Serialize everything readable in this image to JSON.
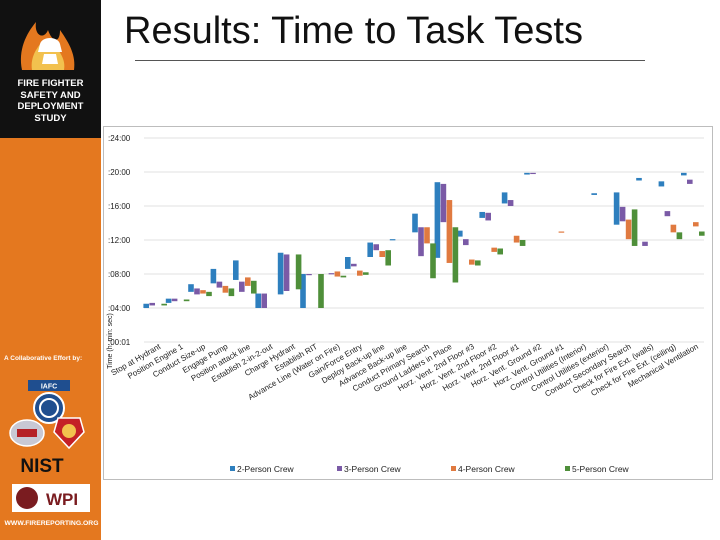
{
  "slide": {
    "title": "Results: Time to Task Tests",
    "org_name": [
      "FIRE FIGHTER",
      "SAFETY AND",
      "DEPLOYMENT",
      "STUDY"
    ],
    "collaborative": "A Collaborative Effort by:",
    "partner_labels": [
      "IAFC",
      "NIST",
      "WPI"
    ],
    "website": "WWW.FIREREPORTING.ORG"
  },
  "colors": {
    "sidebar": "#e4781f",
    "logo_bg": "#111111",
    "series": [
      "#2e7fbe",
      "#7a5aa6",
      "#e07a40",
      "#4f8f3a"
    ]
  },
  "chart_data": {
    "type": "bar",
    "subtype": "floating-range",
    "ylabel": "Time (h: min: sec)",
    "y_ticks": [
      ":00:01",
      ":04:00",
      ":08:00",
      ":12:00",
      ":16:00",
      ":20:00",
      ":24:00"
    ],
    "ylim": [
      0,
      24
    ],
    "y_unit": "minutes",
    "legend_position": "bottom",
    "categories": [
      "Stop at Hydrant",
      "Position Engine 1",
      "Conduct Size-up",
      "Engage Pump",
      "Position attack line",
      "Establish 2-in-2-out",
      "Charge Hydrant",
      "Establish RIT",
      "Advance Line (Water on Fire)",
      "Gain/Force Entry",
      "Deploy Back-up line",
      "Advance Back-up line",
      "Conduct Primary Search",
      "Ground Ladders in Place",
      "Horz. Vent. 2nd Floor #3",
      "Horz. Vent. 2nd Floor #2",
      "Horz. Vent. 2nd Floor #1",
      "Horz. Vent. Ground #2",
      "Horz. Vent. Ground #1",
      "Control Utilities (Interior)",
      "Control Utilities (exterior)",
      "Conduct Secondary Search",
      "Check for Fire Ext. (walls)",
      "Check for Fire Ext. (ceiling)",
      "Mechanical Ventilation"
    ],
    "series": [
      {
        "name": "2-Person Crew",
        "ranges": [
          [
            4.0,
            4.5
          ],
          [
            4.6,
            5.1
          ],
          [
            5.9,
            6.8
          ],
          [
            6.9,
            8.6
          ],
          [
            7.3,
            9.6
          ],
          [
            4.0,
            5.7
          ],
          [
            5.6,
            10.5
          ],
          [
            4.0,
            8.0
          ],
          [
            null,
            null
          ],
          [
            8.6,
            10.0
          ],
          [
            10.0,
            11.7
          ],
          [
            12.0,
            12.1
          ],
          [
            12.9,
            15.1
          ],
          [
            9.9,
            18.8
          ],
          [
            12.4,
            13.1
          ],
          [
            14.6,
            15.3
          ],
          [
            16.3,
            17.6
          ],
          [
            19.7,
            19.9
          ],
          [
            null,
            null
          ],
          [
            null,
            null
          ],
          [
            17.3,
            17.5
          ],
          [
            13.8,
            17.6
          ],
          [
            19.0,
            19.3
          ],
          [
            18.3,
            18.9
          ],
          [
            19.6,
            19.9
          ]
        ]
      },
      {
        "name": "3-Person Crew",
        "ranges": [
          [
            4.3,
            4.6
          ],
          [
            4.8,
            5.1
          ],
          [
            5.6,
            6.3
          ],
          [
            6.4,
            7.1
          ],
          [
            5.9,
            7.1
          ],
          [
            4.0,
            5.7
          ],
          [
            6.0,
            10.3
          ],
          [
            7.9,
            8.0
          ],
          [
            8.0,
            8.1
          ],
          [
            8.9,
            9.2
          ],
          [
            10.8,
            11.5
          ],
          [
            null,
            null
          ],
          [
            10.1,
            13.5
          ],
          [
            14.1,
            18.6
          ],
          [
            11.4,
            12.1
          ],
          [
            14.3,
            15.2
          ],
          [
            16.0,
            16.7
          ],
          [
            19.8,
            19.9
          ],
          [
            null,
            null
          ],
          [
            null,
            null
          ],
          [
            null,
            null
          ],
          [
            14.2,
            15.9
          ],
          [
            11.3,
            11.8
          ],
          [
            14.8,
            15.4
          ],
          [
            18.6,
            19.1
          ]
        ]
      },
      {
        "name": "4-Person Crew",
        "ranges": [
          [
            null,
            null
          ],
          [
            null,
            null
          ],
          [
            5.7,
            6.1
          ],
          [
            5.8,
            6.6
          ],
          [
            6.6,
            7.6
          ],
          [
            null,
            null
          ],
          [
            null,
            null
          ],
          [
            null,
            null
          ],
          [
            7.7,
            8.3
          ],
          [
            7.8,
            8.4
          ],
          [
            10.0,
            10.7
          ],
          [
            null,
            null
          ],
          [
            11.6,
            13.5
          ],
          [
            9.3,
            16.7
          ],
          [
            9.1,
            9.7
          ],
          [
            10.6,
            11.1
          ],
          [
            11.7,
            12.5
          ],
          [
            null,
            null
          ],
          [
            12.9,
            13.0
          ],
          [
            null,
            null
          ],
          [
            null,
            null
          ],
          [
            12.1,
            14.4
          ],
          [
            null,
            null
          ],
          [
            12.9,
            13.8
          ],
          [
            13.6,
            14.1
          ]
        ]
      },
      {
        "name": "5-Person Crew",
        "ranges": [
          [
            4.3,
            4.5
          ],
          [
            4.8,
            5.0
          ],
          [
            5.4,
            5.9
          ],
          [
            5.4,
            6.3
          ],
          [
            5.7,
            7.2
          ],
          [
            null,
            null
          ],
          [
            6.2,
            10.3
          ],
          [
            4.0,
            8.0
          ],
          [
            7.6,
            7.8
          ],
          [
            7.9,
            8.2
          ],
          [
            9.0,
            10.8
          ],
          [
            null,
            null
          ],
          [
            7.5,
            11.6
          ],
          [
            7.0,
            13.5
          ],
          [
            9.0,
            9.6
          ],
          [
            10.3,
            11.0
          ],
          [
            11.3,
            12.0
          ],
          [
            null,
            null
          ],
          [
            null,
            null
          ],
          [
            null,
            null
          ],
          [
            null,
            null
          ],
          [
            11.3,
            15.6
          ],
          [
            null,
            null
          ],
          [
            12.1,
            12.9
          ],
          [
            12.5,
            13.0
          ]
        ]
      }
    ]
  }
}
